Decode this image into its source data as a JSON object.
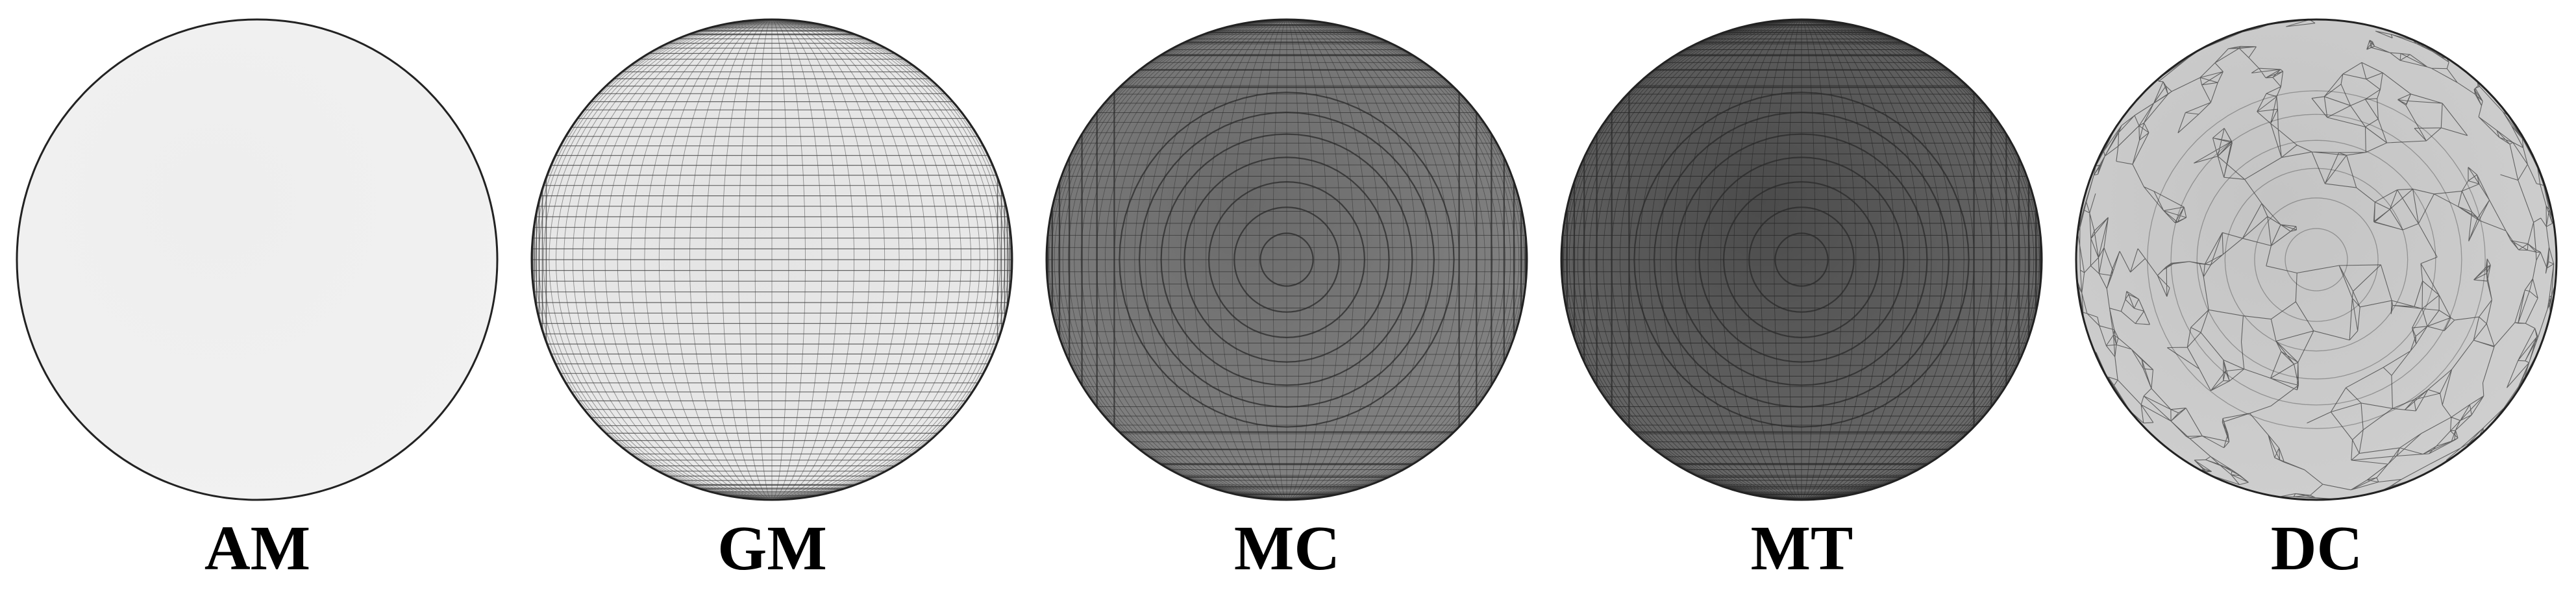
{
  "figure": {
    "panels": [
      {
        "id": "am",
        "label": "AM",
        "mesh_style": "random-long-edges",
        "fill_color": "#eeeeee",
        "line_color": "#3a3a3a"
      },
      {
        "id": "gm",
        "label": "GM",
        "mesh_style": "latlong-bands",
        "fill_color": "#e4e4e4",
        "line_color": "#444444"
      },
      {
        "id": "mc",
        "label": "MC",
        "mesh_style": "dense-concentric",
        "fill_color": "#6a6a6a",
        "line_color": "#2e2e2e"
      },
      {
        "id": "mt",
        "label": "MT",
        "mesh_style": "dense-dark",
        "fill_color": "#4b4b4b",
        "line_color": "#262626"
      },
      {
        "id": "dc",
        "label": "DC",
        "mesh_style": "dense-triangulation",
        "fill_color": "#c4c4c4",
        "line_color": "#333333"
      }
    ]
  }
}
